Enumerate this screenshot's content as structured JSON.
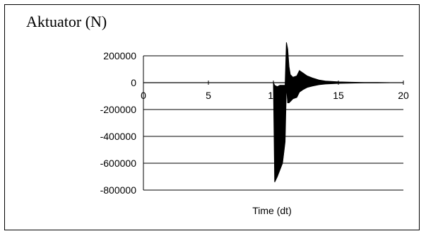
{
  "chart_data": {
    "type": "line",
    "title": "Aktuator (N)",
    "xlabel": "Time (dt)",
    "ylabel": "",
    "xlim": [
      0,
      20
    ],
    "ylim": [
      -800000,
      200000
    ],
    "xticks": [
      "0",
      "5",
      "10",
      "15",
      "20"
    ],
    "yticks": [
      "200000",
      "0",
      "-200000",
      "-400000",
      "-600000",
      "-800000"
    ],
    "grid": "horizontal",
    "legend": "none",
    "series": [
      {
        "color": "#000000",
        "x": [
          10.0,
          10.1,
          10.3,
          10.5,
          10.7,
          10.9,
          11.0,
          11.1,
          11.2,
          11.3,
          11.5,
          11.8,
          12.0,
          12.3,
          12.6,
          13.0,
          13.5,
          14.0,
          15.0,
          16.0,
          17.0,
          18.0,
          19.0
        ],
        "upper": [
          0,
          -20000,
          -30000,
          -20000,
          -20000,
          -20000,
          300000,
          250000,
          120000,
          60000,
          40000,
          50000,
          90000,
          70000,
          50000,
          35000,
          20000,
          12000,
          6000,
          3000,
          1500,
          1000,
          0
        ],
        "lower": [
          0,
          -740000,
          -700000,
          -650000,
          -600000,
          -440000,
          -20000,
          -150000,
          -150000,
          -140000,
          -120000,
          -110000,
          -70000,
          -50000,
          -35000,
          -25000,
          -15000,
          -10000,
          -5000,
          -3000,
          -1500,
          -1000,
          0
        ]
      }
    ]
  }
}
